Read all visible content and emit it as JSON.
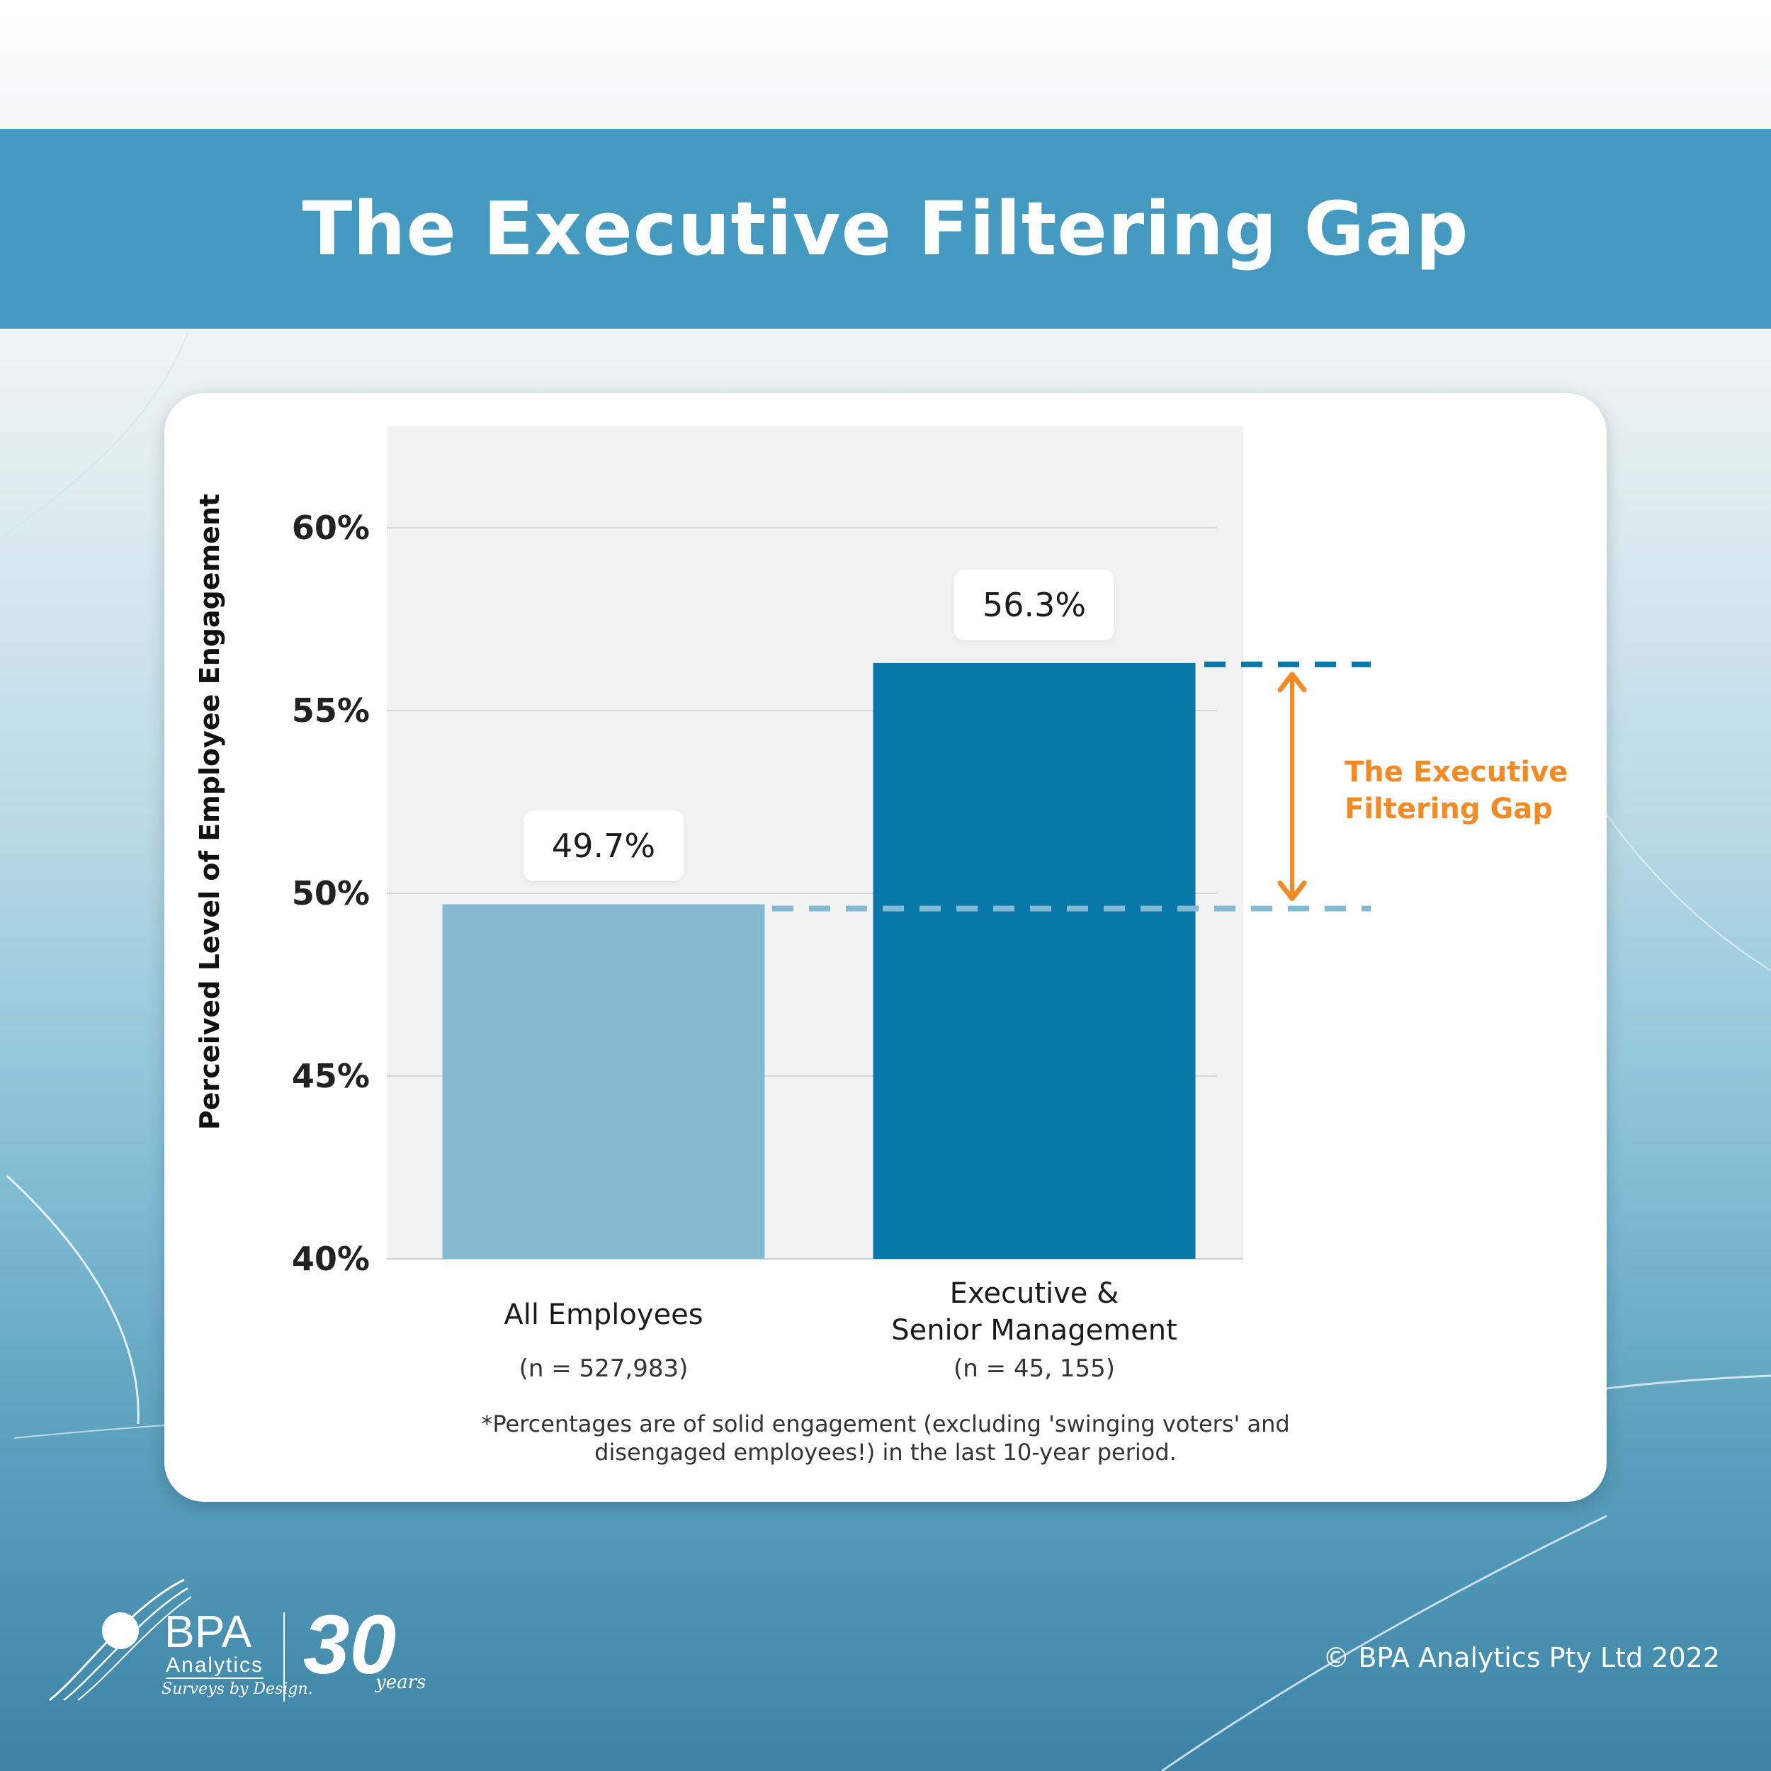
{
  "page": {
    "title": "The Executive Filtering Gap",
    "copyright": "© BPA Analytics Pty Ltd 2022"
  },
  "brand": {
    "name": "BPA",
    "sub": "Analytics",
    "tagline": "Surveys by Design.",
    "years_number": "30",
    "years_word": "years"
  },
  "chart_data": {
    "type": "bar",
    "ylabel": "Perceived Level of Employee Engagement",
    "ylim": [
      40,
      62.8
    ],
    "ticks": [
      "40%",
      "45%",
      "50%",
      "55%",
      "60%"
    ],
    "tick_values": [
      40,
      45,
      50,
      55,
      60
    ],
    "grid": true,
    "categories": [
      "All Employees",
      "Executive & Senior Management"
    ],
    "category_lines": [
      [
        "All Employees"
      ],
      [
        "Executive &",
        "Senior Management"
      ]
    ],
    "sample_sizes": [
      "(n = 527,983)",
      "(n = 45, 155)"
    ],
    "values": [
      49.7,
      56.3
    ],
    "value_labels": [
      "49.7%",
      "56.3%"
    ],
    "colors": [
      "#84b9d2",
      "#0778a7"
    ],
    "annotation": {
      "text_line1": "The Executive",
      "text_line2": "Filtering Gap",
      "color": "#f28a25",
      "from": 49.7,
      "to": 56.3
    },
    "footnote_line1": "*Percentages are of solid engagement (excluding 'swinging voters' and",
    "footnote_line2": "disengaged employees!) in the last 10-year period."
  }
}
